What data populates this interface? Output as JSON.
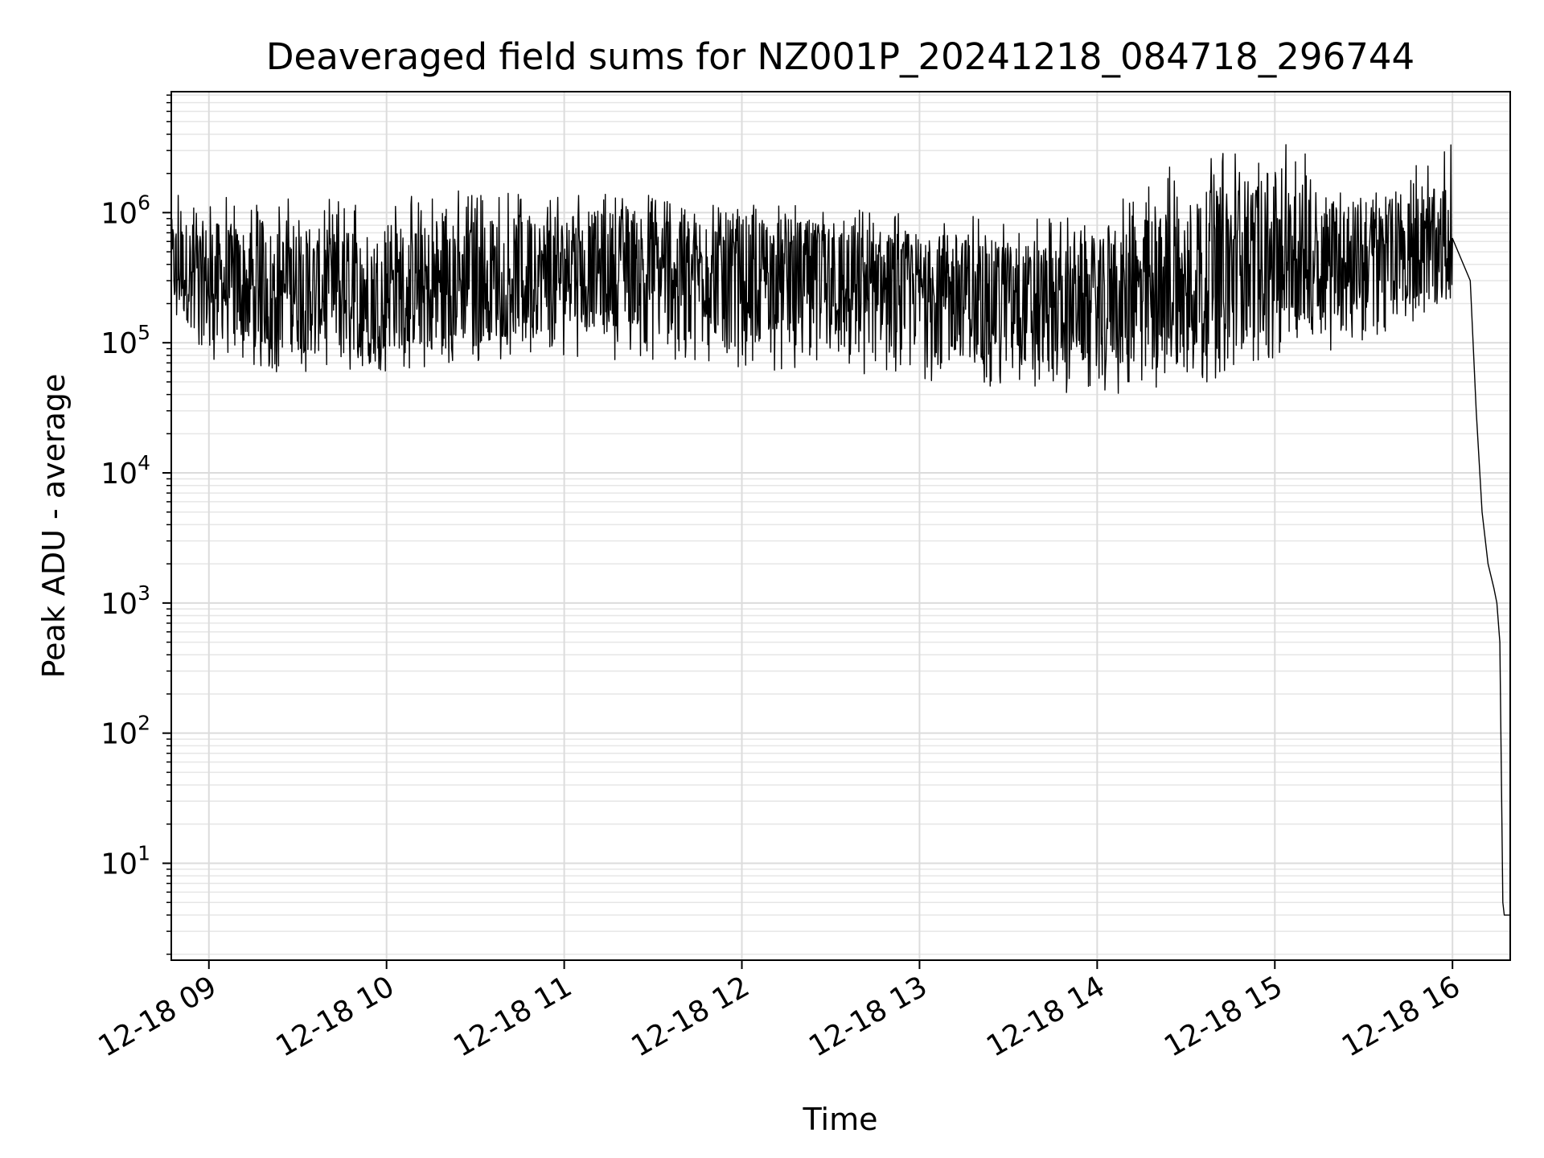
{
  "chart_data": {
    "type": "line",
    "title": "Deaveraged field sums for NZ001P_20241218_084718_296744",
    "xlabel": "Time",
    "ylabel": "Peak ADU - average",
    "yscale": "log",
    "ylim": [
      1.8,
      8500000
    ],
    "xlim": [
      "2024-12-18 08:47:18",
      "2024-12-18 16:19:30"
    ],
    "x_ticks": [
      "12-18 09",
      "12-18 10",
      "12-18 11",
      "12-18 12",
      "12-18 13",
      "12-18 14",
      "12-18 15",
      "12-18 16"
    ],
    "y_ticks": [
      10,
      100,
      1000,
      10000,
      100000,
      1000000
    ],
    "y_tick_labels": [
      {
        "base": "10",
        "exp": "1"
      },
      {
        "base": "10",
        "exp": "2"
      },
      {
        "base": "10",
        "exp": "3"
      },
      {
        "base": "10",
        "exp": "4"
      },
      {
        "base": "10",
        "exp": "5"
      },
      {
        "base": "10",
        "exp": "6"
      }
    ],
    "grid": true,
    "series": [
      {
        "color": "#000000",
        "x": [
          "2024-12-18 08:47:18",
          "2024-12-18 09:00",
          "2024-12-18 09:30",
          "2024-12-18 10:00",
          "2024-12-18 10:30",
          "2024-12-18 11:00",
          "2024-12-18 11:30",
          "2024-12-18 12:00",
          "2024-12-18 12:30",
          "2024-12-18 13:00",
          "2024-12-18 13:30",
          "2024-12-18 14:00",
          "2024-12-18 14:30",
          "2024-12-18 15:00",
          "2024-12-18 15:30",
          "2024-12-18 16:00",
          "2024-12-18 16:06",
          "2024-12-18 16:08",
          "2024-12-18 16:10",
          "2024-12-18 16:12",
          "2024-12-18 16:14",
          "2024-12-18 16:15",
          "2024-12-18 16:16",
          "2024-12-18 16:17",
          "2024-12-18 16:17:30",
          "2024-12-18 16:19:30"
        ],
        "y": [
          400000,
          300000,
          250000,
          250000,
          300000,
          350000,
          400000,
          350000,
          300000,
          250000,
          200000,
          200000,
          300000,
          500000,
          450000,
          600000,
          300000,
          30000,
          5000,
          2000,
          1300,
          1000,
          500,
          5,
          4,
          4
        ],
        "min_band": [
          150000,
          70000,
          55000,
          60000,
          70000,
          80000,
          70000,
          65000,
          55000,
          50000,
          45000,
          38000,
          45000,
          70000,
          100000,
          200000
        ],
        "max_band": [
          1500000,
          1400000,
          1300000,
          1300000,
          1600000,
          1500000,
          1400000,
          1200000,
          1100000,
          1000000,
          1000000,
          900000,
          3000000,
          4000000,
          1500000,
          3500000
        ]
      }
    ]
  }
}
